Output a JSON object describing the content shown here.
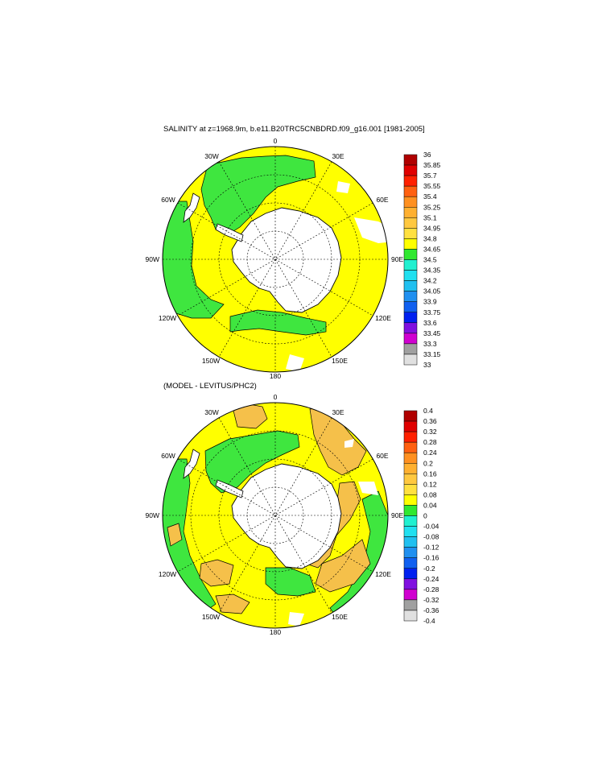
{
  "panels": [
    {
      "title": "SALINITY at z=1968.9m, b.e11.B20TRC5CNBDRD.f09_g16.001 [1981-2005]",
      "colorbar_labels": [
        "36",
        "35.85",
        "35.7",
        "35.55",
        "35.4",
        "35.25",
        "35.1",
        "34.95",
        "34.8",
        "34.65",
        "34.5",
        "34.35",
        "34.2",
        "34.05",
        "33.9",
        "33.75",
        "33.6",
        "33.45",
        "33.3",
        "33.15",
        "33"
      ]
    },
    {
      "title": "(MODEL - LEVITUS/PHC2)",
      "colorbar_labels": [
        "0.4",
        "0.36",
        "0.32",
        "0.28",
        "0.24",
        "0.2",
        "0.16",
        "0.12",
        "0.08",
        "0.04",
        "0",
        "-0.04",
        "-0.08",
        "-0.12",
        "-0.16",
        "-0.2",
        "-0.24",
        "-0.28",
        "-0.32",
        "-0.36",
        "-0.4"
      ]
    }
  ],
  "longitude_labels": {
    "lon_0": "0",
    "lon_30e": "30E",
    "lon_60e": "60E",
    "lon_90e": "90E",
    "lon_120e": "120E",
    "lon_150e": "150E",
    "lon_180": "180",
    "lon_150w": "150W",
    "lon_120w": "120W",
    "lon_90w": "90W",
    "lon_60w": "60W",
    "lon_30w": "30W"
  },
  "colors": {
    "scale": [
      "#e0e0e0",
      "#a0a0a0",
      "#d000d0",
      "#8010e0",
      "#0020f0",
      "#1060f0",
      "#2090f0",
      "#20c0f0",
      "#20e0f0",
      "#20f0d0",
      "#30e830",
      "#ffff00",
      "#ffe040",
      "#ffc840",
      "#ffb030",
      "#ff9020",
      "#ff6010",
      "#ff2000",
      "#e00000",
      "#b00000"
    ],
    "ocean_main": "#ffff00",
    "ocean_green": "#3fe63f",
    "ocean_orange": "#f5c04a",
    "land": "#ffffff"
  }
}
